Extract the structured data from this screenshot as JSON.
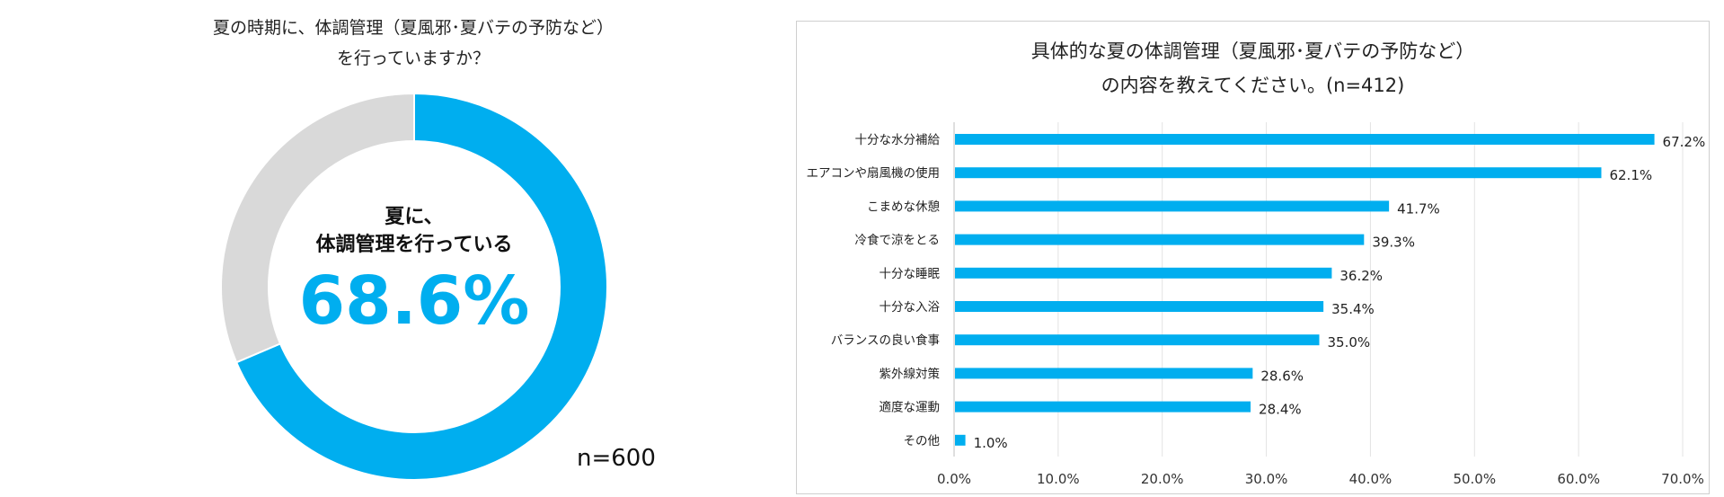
{
  "chart_data": [
    {
      "type": "pie",
      "title": "夏の時期に、体調管理（夏風邪･夏バテの予防など）\nを行っていますか？",
      "center_label": [
        "夏に、",
        "体調管理を行っている"
      ],
      "center_value": "68.6%",
      "note": "n=600",
      "slices": [
        {
          "label": "体調管理を行っている",
          "value": 68.6,
          "color": "#00aeef"
        },
        {
          "label": "",
          "value": 31.4,
          "color": "#d9d9d9"
        }
      ]
    },
    {
      "type": "bar",
      "orientation": "horizontal",
      "title": "具体的な夏の体調管理（夏風邪･夏バテの予防など）\nの内容を教えてください。(n=412)",
      "categories": [
        "十分な水分補給",
        "エアコンや扇風機の使用",
        "こまめな休憩",
        "冷食で涼をとる",
        "十分な睡眠",
        "十分な入浴",
        "バランスの良い食事",
        "紫外線対策",
        "適度な運動",
        "その他"
      ],
      "values": [
        67.2,
        62.1,
        41.7,
        39.3,
        36.2,
        35.4,
        35.0,
        28.6,
        28.4,
        1.0
      ],
      "value_labels": [
        "67.2%",
        "62.1%",
        "41.7%",
        "39.3%",
        "36.2%",
        "35.4%",
        "35.0%",
        "28.6%",
        "28.4%",
        "1.0%"
      ],
      "xlim": [
        0,
        70
      ],
      "ticks": [
        "0.0%",
        "10.0%",
        "20.0%",
        "30.0%",
        "40.0%",
        "50.0%",
        "60.0%",
        "70.0%"
      ],
      "grid": true,
      "bar_color": "#00aeef"
    }
  ]
}
